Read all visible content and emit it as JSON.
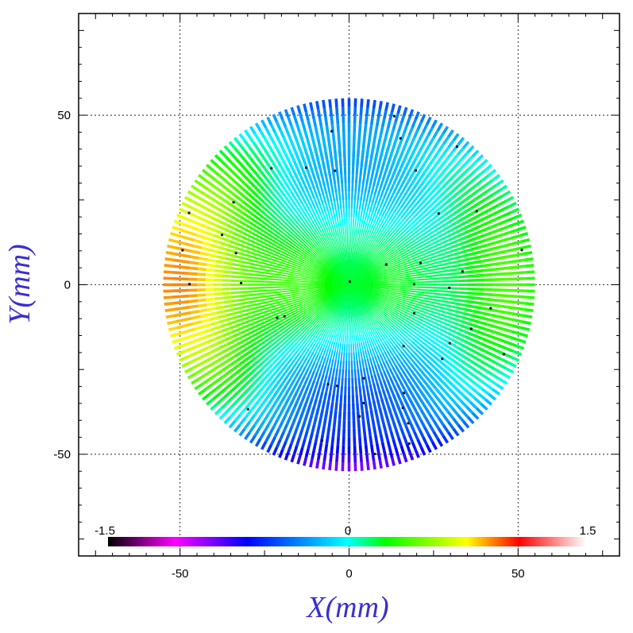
{
  "chart_data": {
    "type": "scatter",
    "title": "",
    "xlabel": "X(mm)",
    "ylabel": "Y(mm)",
    "xlim": [
      -80,
      80
    ],
    "ylim": [
      -80,
      80
    ],
    "xticks": [
      -50,
      0,
      50
    ],
    "yticks": [
      -50,
      0,
      50
    ],
    "x_tick_labels": [
      "-50",
      "0",
      "50"
    ],
    "y_tick_labels": [
      "-50",
      "0",
      "50"
    ],
    "grid": true,
    "grid_style": "dotted",
    "pattern": "radial spokes forming a disk",
    "disk_radius_mm": 55,
    "spoke_count": 180,
    "color_scale": {
      "min": -1.5,
      "max": 1.5,
      "labels": [
        "-1.5",
        "0",
        "1.5"
      ],
      "colormap": [
        "#000000",
        "#ff00ff",
        "#0000ff",
        "#00ffff",
        "#00ff00",
        "#ffff00",
        "#ff0000",
        "#ffffff"
      ],
      "placement": "bottom inside plot"
    },
    "value_pattern": {
      "center": 0.2,
      "top_rim": -0.5,
      "bottom_rim": -0.9,
      "left_rim": 0.9,
      "right_rim": 0.3
    }
  }
}
